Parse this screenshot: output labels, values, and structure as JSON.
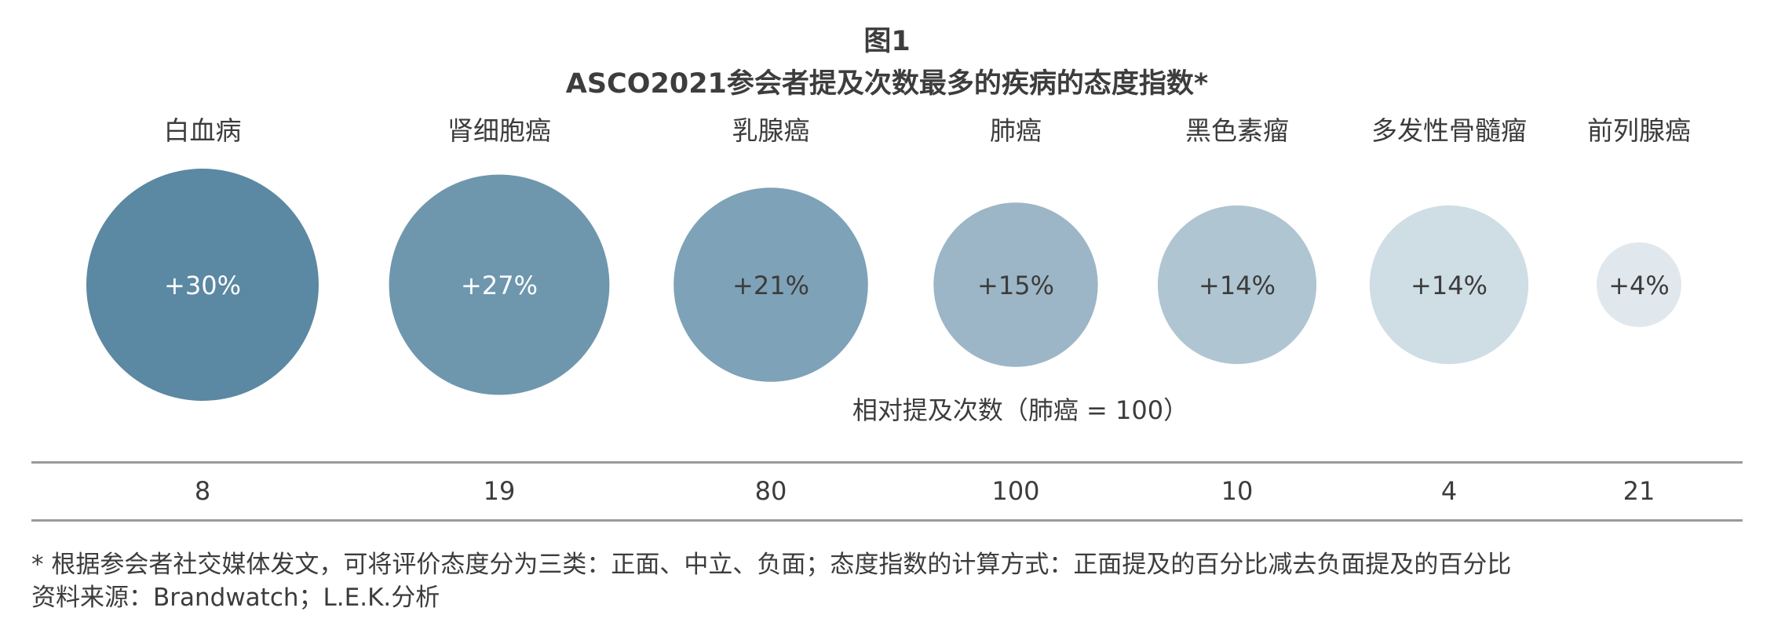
{
  "figure": {
    "title": "图1",
    "subtitle": "ASCO2021参会者提及次数最多的疾病的态度指数*"
  },
  "chart_data": {
    "type": "bubble",
    "categories": [
      "白血病",
      "肾细胞癌",
      "乳腺癌",
      "肺癌",
      "黑色素瘤",
      "多发性骨髓瘤",
      "前列腺癌"
    ],
    "attitude_index_labels": [
      "+30%",
      "+27%",
      "+21%",
      "+15%",
      "+14%",
      "+14%",
      "+4%"
    ],
    "attitude_index_values": [
      30,
      27,
      21,
      15,
      14,
      14,
      4
    ],
    "relative_mentions": [
      8,
      19,
      80,
      100,
      10,
      4,
      21
    ],
    "relative_mentions_label": "相对提及次数（肺癌 = 100）",
    "bubble_colors": [
      "#5b88a2",
      "#6e97ae",
      "#7ea2b7",
      "#9cb6c7",
      "#b0c5d2",
      "#cfdde5",
      "#e1e8ed"
    ],
    "bubble_text_colors": [
      "#ffffff",
      "#ffffff",
      "#3c3c3c",
      "#3c3c3c",
      "#3c3c3c",
      "#3c3c3c",
      "#3c3c3c"
    ]
  },
  "footnotes": {
    "note": "* 根据参会者社交媒体发文，可将评价态度分为三类：正面、中立、负面；态度指数的计算方式：正面提及的百分比减去负面提及的百分比",
    "source": "资料来源：Brandwatch；L.E.K.分析"
  }
}
